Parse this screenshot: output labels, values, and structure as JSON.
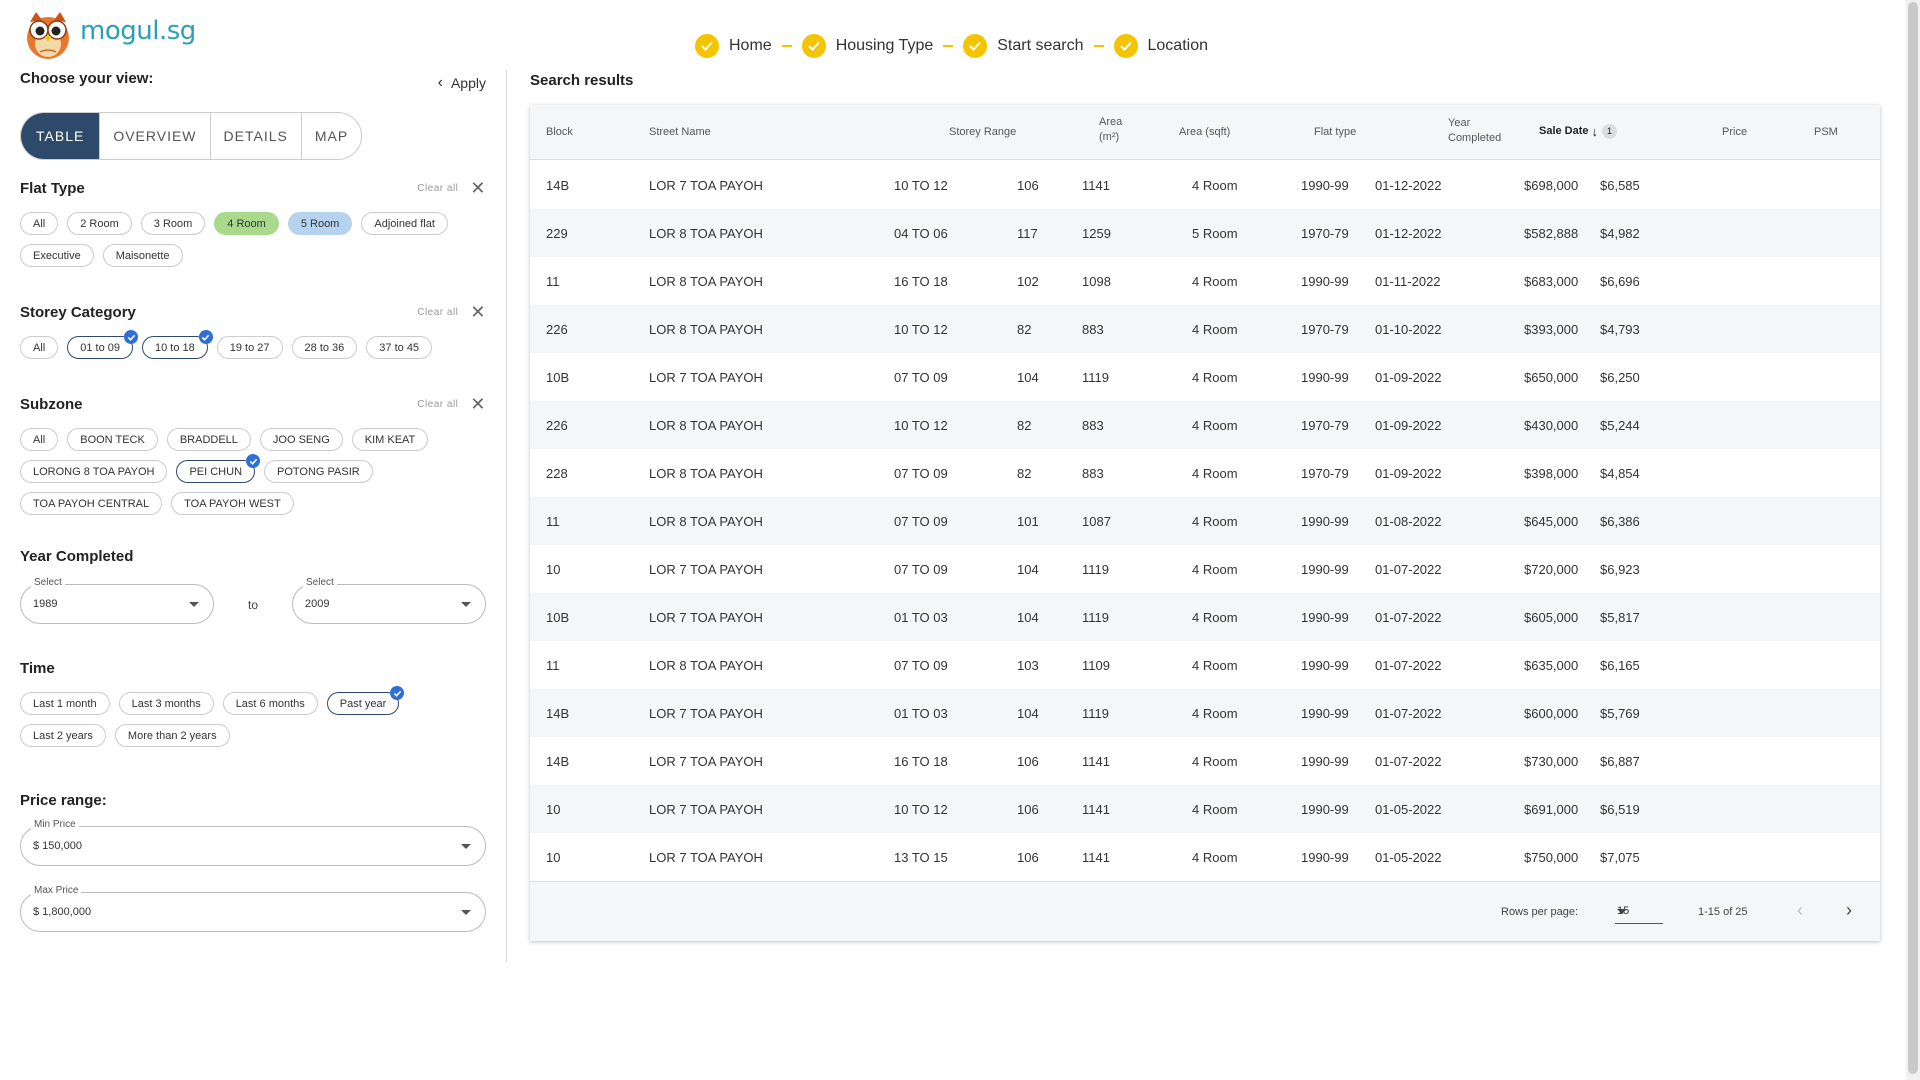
{
  "brand": {
    "name": "mogul.sg"
  },
  "stepper": [
    "Home",
    "Housing Type",
    "Start search",
    "Location"
  ],
  "view": {
    "title": "Choose your view:",
    "apply_label": "Apply",
    "options": [
      "TABLE",
      "OVERVIEW",
      "DETAILS",
      "MAP"
    ],
    "selected": "TABLE"
  },
  "filters": {
    "clear_label": "Clear all",
    "flat_type": {
      "title": "Flat Type",
      "chips": [
        {
          "label": "All"
        },
        {
          "label": "2 Room"
        },
        {
          "label": "3 Room"
        },
        {
          "label": "4 Room",
          "style": "green"
        },
        {
          "label": "5 Room",
          "style": "blue"
        },
        {
          "label": "Adjoined flat"
        },
        {
          "label": "Executive"
        },
        {
          "label": "Maisonette"
        }
      ]
    },
    "storey": {
      "title": "Storey Category",
      "chips": [
        {
          "label": "All"
        },
        {
          "label": "01 to 09",
          "checked": true
        },
        {
          "label": "10 to 18",
          "checked": true
        },
        {
          "label": "19 to 27"
        },
        {
          "label": "28 to 36"
        },
        {
          "label": "37 to 45"
        }
      ]
    },
    "subzone": {
      "title": "Subzone",
      "chips": [
        {
          "label": "All"
        },
        {
          "label": "BOON TECK"
        },
        {
          "label": "BRADDELL"
        },
        {
          "label": "JOO SENG"
        },
        {
          "label": "KIM KEAT"
        },
        {
          "label": "LORONG 8 TOA PAYOH"
        },
        {
          "label": "PEI CHUN",
          "checked": true
        },
        {
          "label": "POTONG PASIR"
        },
        {
          "label": "TOA PAYOH CENTRAL"
        },
        {
          "label": "TOA PAYOH WEST"
        }
      ]
    },
    "year_completed": {
      "title": "Year Completed",
      "from_label": "Select",
      "from_value": "1989",
      "to_text": "to",
      "to_label": "Select",
      "to_value": "2009"
    },
    "time": {
      "title": "Time",
      "chips": [
        {
          "label": "Last 1 month"
        },
        {
          "label": "Last 3 months"
        },
        {
          "label": "Last 6 months"
        },
        {
          "label": "Past year",
          "checked": true
        },
        {
          "label": "Last 2 years"
        },
        {
          "label": "More than 2 years"
        }
      ]
    },
    "price": {
      "title": "Price range:",
      "min_label": "Min Price",
      "min_value": "$ 150,000",
      "max_label": "Max Price",
      "max_value": "$ 1,800,000"
    }
  },
  "results": {
    "title": "Search results",
    "headers": {
      "block": "Block",
      "street": "Street Name",
      "storey": "Storey Range",
      "area_m2_line1": "Area",
      "area_m2_line2": "(m²)",
      "area_sqft": "Area (sqft)",
      "flat_type": "Flat type",
      "year_line1": "Year",
      "year_line2": "Completed",
      "sale_date": "Sale Date",
      "sort_rank": "1",
      "price": "Price",
      "psm": "PSM"
    },
    "rows": [
      [
        "14B",
        "LOR 7 TOA PAYOH",
        "10 TO 12",
        "106",
        "1141",
        "4 Room",
        "1990-99",
        "01-12-2022",
        "$698,000",
        "$6,585"
      ],
      [
        "229",
        "LOR 8 TOA PAYOH",
        "04 TO 06",
        "117",
        "1259",
        "5 Room",
        "1970-79",
        "01-12-2022",
        "$582,888",
        "$4,982"
      ],
      [
        "11",
        "LOR 8 TOA PAYOH",
        "16 TO 18",
        "102",
        "1098",
        "4 Room",
        "1990-99",
        "01-11-2022",
        "$683,000",
        "$6,696"
      ],
      [
        "226",
        "LOR 8 TOA PAYOH",
        "10 TO 12",
        "82",
        "883",
        "4 Room",
        "1970-79",
        "01-10-2022",
        "$393,000",
        "$4,793"
      ],
      [
        "10B",
        "LOR 7 TOA PAYOH",
        "07 TO 09",
        "104",
        "1119",
        "4 Room",
        "1990-99",
        "01-09-2022",
        "$650,000",
        "$6,250"
      ],
      [
        "226",
        "LOR 8 TOA PAYOH",
        "10 TO 12",
        "82",
        "883",
        "4 Room",
        "1970-79",
        "01-09-2022",
        "$430,000",
        "$5,244"
      ],
      [
        "228",
        "LOR 8 TOA PAYOH",
        "07 TO 09",
        "82",
        "883",
        "4 Room",
        "1970-79",
        "01-09-2022",
        "$398,000",
        "$4,854"
      ],
      [
        "11",
        "LOR 8 TOA PAYOH",
        "07 TO 09",
        "101",
        "1087",
        "4 Room",
        "1990-99",
        "01-08-2022",
        "$645,000",
        "$6,386"
      ],
      [
        "10",
        "LOR 7 TOA PAYOH",
        "07 TO 09",
        "104",
        "1119",
        "4 Room",
        "1990-99",
        "01-07-2022",
        "$720,000",
        "$6,923"
      ],
      [
        "10B",
        "LOR 7 TOA PAYOH",
        "01 TO 03",
        "104",
        "1119",
        "4 Room",
        "1990-99",
        "01-07-2022",
        "$605,000",
        "$5,817"
      ],
      [
        "11",
        "LOR 8 TOA PAYOH",
        "07 TO 09",
        "103",
        "1109",
        "4 Room",
        "1990-99",
        "01-07-2022",
        "$635,000",
        "$6,165"
      ],
      [
        "14B",
        "LOR 7 TOA PAYOH",
        "01 TO 03",
        "104",
        "1119",
        "4 Room",
        "1990-99",
        "01-07-2022",
        "$600,000",
        "$5,769"
      ],
      [
        "14B",
        "LOR 7 TOA PAYOH",
        "16 TO 18",
        "106",
        "1141",
        "4 Room",
        "1990-99",
        "01-07-2022",
        "$730,000",
        "$6,887"
      ],
      [
        "10",
        "LOR 7 TOA PAYOH",
        "10 TO 12",
        "106",
        "1141",
        "4 Room",
        "1990-99",
        "01-05-2022",
        "$691,000",
        "$6,519"
      ],
      [
        "10",
        "LOR 7 TOA PAYOH",
        "13 TO 15",
        "106",
        "1141",
        "4 Room",
        "1990-99",
        "01-05-2022",
        "$750,000",
        "$7,075"
      ]
    ],
    "footer": {
      "rows_per_page_label": "Rows per page:",
      "rows_per_page": "15",
      "range": "1-15 of 25"
    }
  },
  "colors": {
    "accent_yellow": "#f5c400",
    "nav_dark": "#2e4a6b",
    "check_blue": "#2f6fd8",
    "brand_teal": "#2f9fb5"
  }
}
